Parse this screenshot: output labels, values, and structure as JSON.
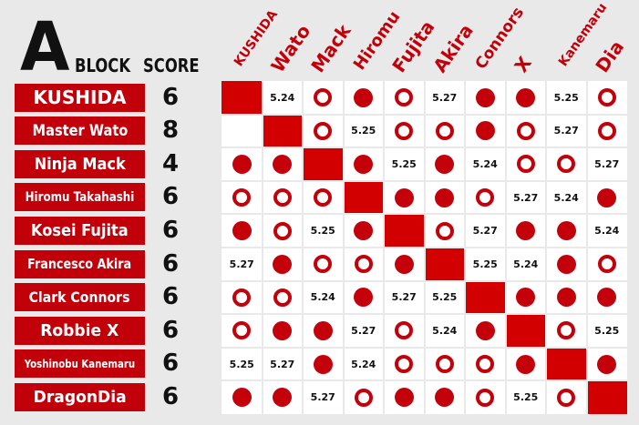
{
  "header": {
    "block_letter": "A",
    "block_word": "BLOCK",
    "score_label": "SCORE"
  },
  "columns": [
    "KUSHIDA",
    "Wato",
    "Mack",
    "Hiromu",
    "Fujita",
    "Akira",
    "Connors",
    "X",
    "Kanemaru",
    "Dia"
  ],
  "rows": [
    {
      "name": "KUSHIDA",
      "score": "6",
      "cells": [
        "self",
        "5.24",
        "L",
        "W",
        "L",
        "5.27",
        "W",
        "W",
        "5.25",
        "L"
      ]
    },
    {
      "name": "Master Wato",
      "score": "8",
      "cells": [
        "",
        "self",
        "L",
        "5.25",
        "L",
        "L",
        "W",
        "L",
        "5.27",
        "L"
      ]
    },
    {
      "name": "Ninja Mack",
      "score": "4",
      "cells": [
        "W",
        "W",
        "self",
        "W",
        "5.25",
        "W",
        "5.24",
        "L",
        "L",
        "5.27"
      ]
    },
    {
      "name": "Hiromu Takahashi",
      "score": "6",
      "cells": [
        "L",
        "L",
        "L",
        "self",
        "W",
        "W",
        "L",
        "5.27",
        "5.24",
        "W"
      ]
    },
    {
      "name": "Kosei Fujita",
      "score": "6",
      "cells": [
        "W",
        "L",
        "5.25",
        "W",
        "self",
        "L",
        "5.27",
        "W",
        "W",
        "5.24"
      ]
    },
    {
      "name": "Francesco Akira",
      "score": "6",
      "cells": [
        "5.27",
        "W",
        "L",
        "L",
        "W",
        "self",
        "5.25",
        "5.24",
        "W",
        "L"
      ]
    },
    {
      "name": "Clark Connors",
      "score": "6",
      "cells": [
        "L",
        "L",
        "5.24",
        "W",
        "5.27",
        "5.25",
        "self",
        "W",
        "W",
        "W"
      ]
    },
    {
      "name": "Robbie X",
      "score": "6",
      "cells": [
        "L",
        "W",
        "W",
        "5.27",
        "L",
        "5.24",
        "W",
        "self",
        "L",
        "5.25"
      ]
    },
    {
      "name": "Yoshinobu Kanemaru",
      "score": "6",
      "cells": [
        "5.25",
        "5.27",
        "W",
        "5.24",
        "L",
        "L",
        "L",
        "W",
        "self",
        "W"
      ]
    },
    {
      "name": "DragonDia",
      "score": "6",
      "cells": [
        "W",
        "W",
        "5.27",
        "L",
        "W",
        "W",
        "L",
        "5.25",
        "L",
        "self"
      ]
    }
  ],
  "colors": {
    "red": "#c2000a",
    "background": "#e9e9e9",
    "cell": "#ffffff"
  },
  "legend_icons": {
    "W": "filled-red-circle (win)",
    "L": "hollow-red-circle (loss)"
  }
}
